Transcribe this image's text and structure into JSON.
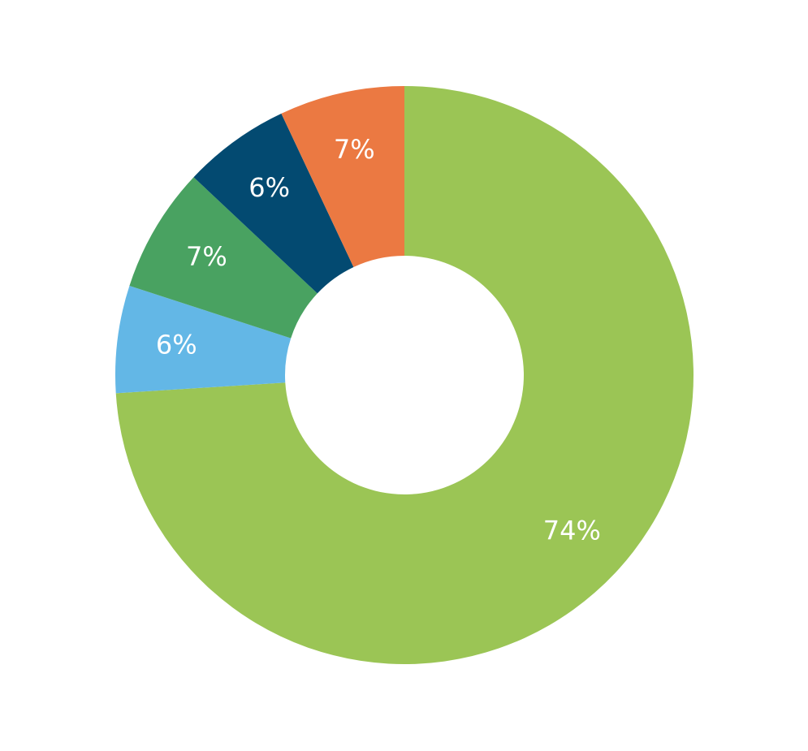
{
  "chart_data": {
    "type": "pie",
    "donut": true,
    "slices": [
      {
        "value": 74,
        "label": "74%",
        "color": "#9BC555"
      },
      {
        "value": 6,
        "label": "6%",
        "color": "#63B7E6"
      },
      {
        "value": 7,
        "label": "7%",
        "color": "#49A261"
      },
      {
        "value": 6,
        "label": "6%",
        "color": "#034A71"
      },
      {
        "value": 7,
        "label": "7%",
        "color": "#EB7942"
      }
    ],
    "legend": "none"
  }
}
